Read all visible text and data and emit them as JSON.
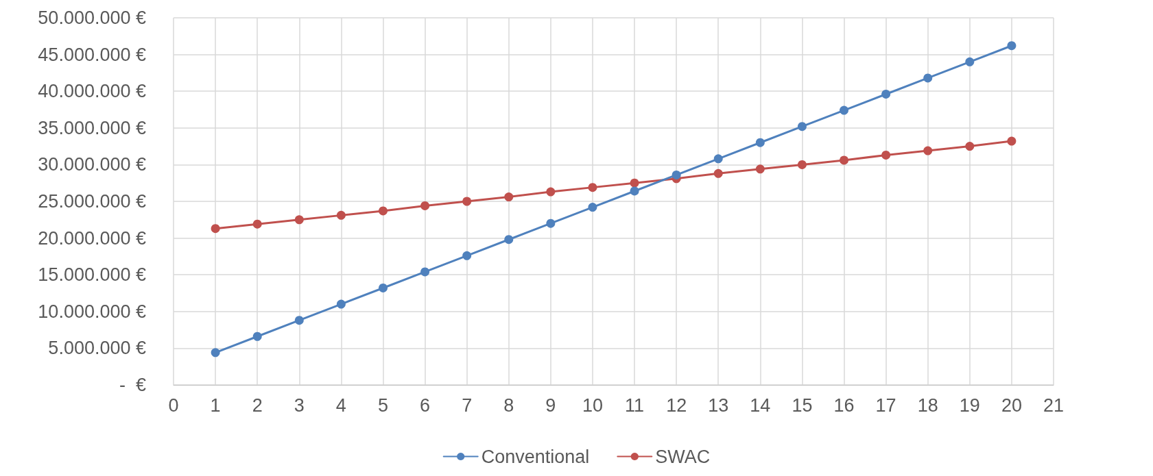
{
  "chart_data": {
    "type": "line",
    "x": [
      1,
      2,
      3,
      4,
      5,
      6,
      7,
      8,
      9,
      10,
      11,
      12,
      13,
      14,
      15,
      16,
      17,
      18,
      19,
      20
    ],
    "series": [
      {
        "name": "Conventional",
        "color": "#4f81bd",
        "values": [
          4400000,
          6600000,
          8800000,
          11000000,
          13200000,
          15400000,
          17600000,
          19800000,
          22000000,
          24200000,
          26400000,
          28600000,
          30800000,
          33000000,
          35200000,
          37400000,
          39600000,
          41800000,
          44000000,
          46200000
        ]
      },
      {
        "name": "SWAC",
        "color": "#c0504d",
        "values": [
          21300000,
          21900000,
          22500000,
          23100000,
          23700000,
          24400000,
          25000000,
          25600000,
          26300000,
          26900000,
          27500000,
          28100000,
          28800000,
          29400000,
          30000000,
          30600000,
          31300000,
          31900000,
          32500000,
          33200000
        ]
      }
    ],
    "xlim": [
      0,
      21
    ],
    "xticks": [
      0,
      1,
      2,
      3,
      4,
      5,
      6,
      7,
      8,
      9,
      10,
      11,
      12,
      13,
      14,
      15,
      16,
      17,
      18,
      19,
      20,
      21
    ],
    "ylim": [
      0,
      50000000
    ],
    "yticks": [
      {
        "value": 0,
        "label": "-  €"
      },
      {
        "value": 5000000,
        "label": "5.000.000 €"
      },
      {
        "value": 10000000,
        "label": "10.000.000 €"
      },
      {
        "value": 15000000,
        "label": "15.000.000 €"
      },
      {
        "value": 20000000,
        "label": "20.000.000 €"
      },
      {
        "value": 25000000,
        "label": "25.000.000 €"
      },
      {
        "value": 30000000,
        "label": "30.000.000 €"
      },
      {
        "value": 35000000,
        "label": "35.000.000 €"
      },
      {
        "value": 40000000,
        "label": "40.000.000 €"
      },
      {
        "value": 45000000,
        "label": "45.000.000 €"
      },
      {
        "value": 50000000,
        "label": "50.000.000 €"
      }
    ],
    "grid": true,
    "legend": "bottom",
    "marker": "circle",
    "line_style": "solid"
  }
}
